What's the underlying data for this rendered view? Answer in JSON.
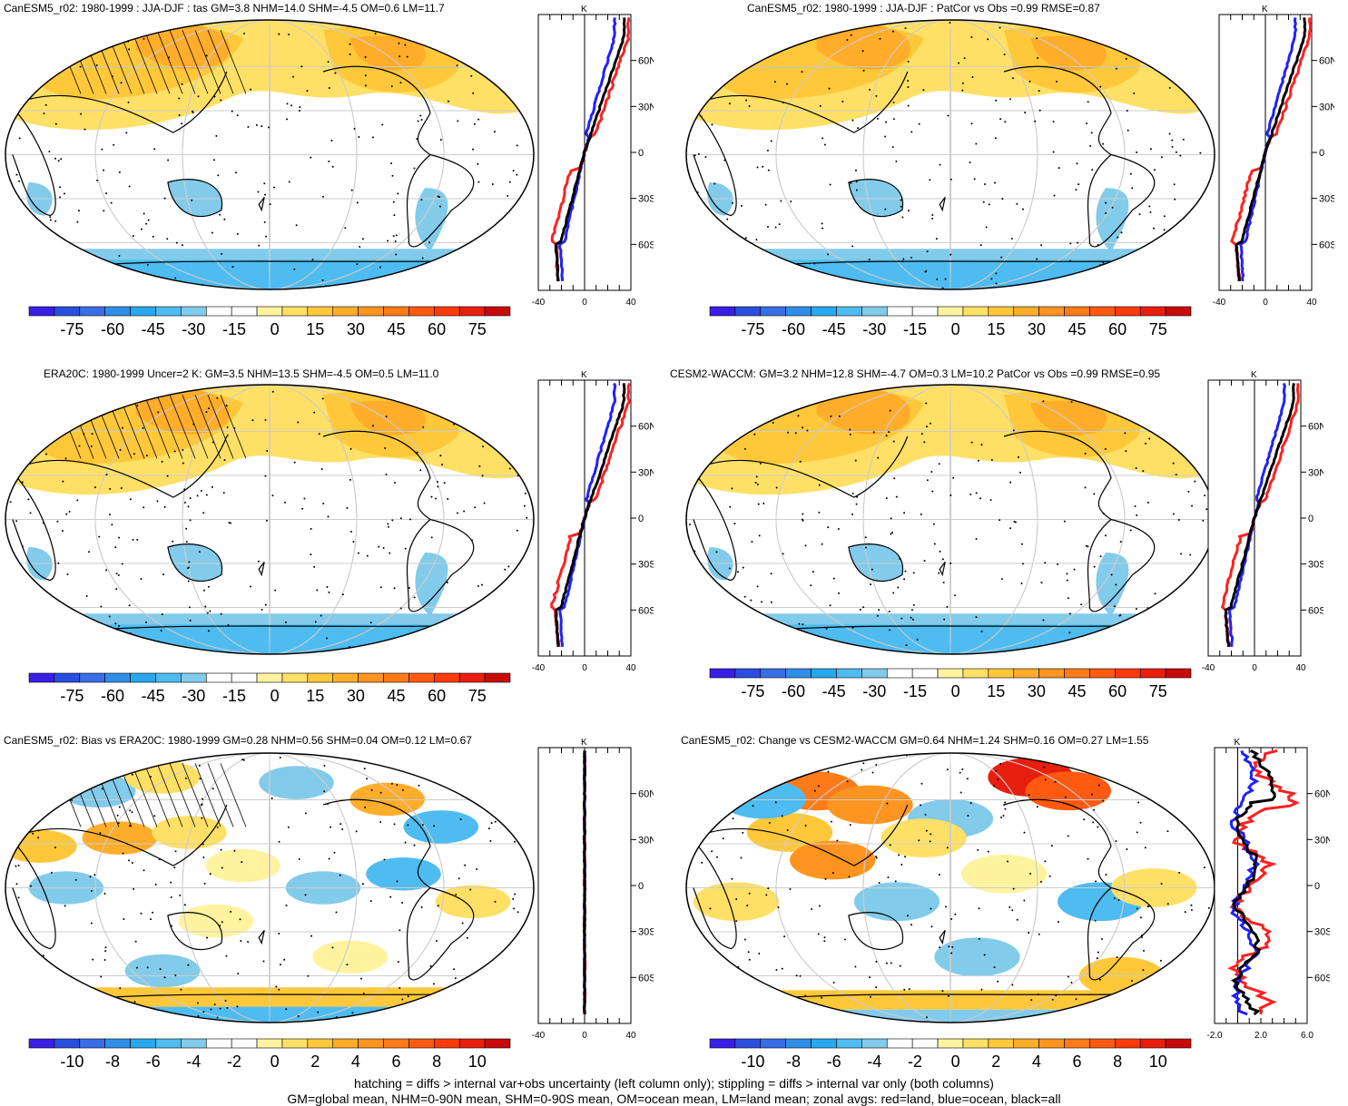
{
  "chart_data": [
    {
      "type": "heatmap",
      "title": "CanESM5_r02: 1980-1999 : JJA-DJF : tas GM=3.8 NHM=14.0 SHM=-4.5 OM=0.6 LM=11.7",
      "colorbar_ticks": [
        "-75",
        "-60",
        "-45",
        "-30",
        "-15",
        "0",
        "15",
        "30",
        "45",
        "60",
        "75"
      ],
      "zonal": {
        "unit_label": "K",
        "xlim": [
          -40,
          40
        ],
        "xticks": [
          "-40",
          "0",
          "40"
        ],
        "yticks": [
          "60N",
          "30N",
          "0",
          "30S",
          "60S"
        ]
      }
    },
    {
      "type": "heatmap",
      "title": "CanESM5_r02: 1980-1999 : JJA-DJF : PatCor vs Obs =0.99 RMSE=0.87",
      "colorbar_ticks": [
        "-75",
        "-60",
        "-45",
        "-30",
        "-15",
        "0",
        "15",
        "30",
        "45",
        "60",
        "75"
      ],
      "zonal": {
        "unit_label": "K",
        "xlim": [
          -40,
          40
        ],
        "xticks": [
          "-40",
          "0",
          "40"
        ],
        "yticks": [
          "60N",
          "30N",
          "0",
          "30S",
          "60S"
        ]
      }
    },
    {
      "type": "heatmap",
      "title": "ERA20C: 1980-1999 Uncer=2 K: GM=3.5 NHM=13.5 SHM=-4.5 OM=0.5 LM=11.0",
      "colorbar_ticks": [
        "-75",
        "-60",
        "-45",
        "-30",
        "-15",
        "0",
        "15",
        "30",
        "45",
        "60",
        "75"
      ],
      "zonal": {
        "unit_label": "K",
        "xlim": [
          -40,
          40
        ],
        "xticks": [
          "-40",
          "0",
          "40"
        ],
        "yticks": [
          "60N",
          "30N",
          "0",
          "30S",
          "60S"
        ]
      }
    },
    {
      "type": "heatmap",
      "title": "CESM2-WACCM: GM=3.2 NHM=12.8 SHM=-4.7 OM=0.3 LM=10.2 PatCor vs Obs =0.99 RMSE=0.95",
      "colorbar_ticks": [
        "-75",
        "-60",
        "-45",
        "-30",
        "-15",
        "0",
        "15",
        "30",
        "45",
        "60",
        "75"
      ],
      "zonal": {
        "unit_label": "K",
        "xlim": [
          -40,
          40
        ],
        "xticks": [
          "-40",
          "0",
          "40"
        ],
        "yticks": [
          "60N",
          "30N",
          "0",
          "30S",
          "60S"
        ]
      }
    },
    {
      "type": "heatmap",
      "title": "CanESM5_r02: Bias vs ERA20C: 1980-1999 GM=0.28 NHM=0.56 SHM=0.04 OM=0.12 LM=0.67",
      "colorbar_ticks": [
        "-10",
        "-8",
        "-6",
        "-4",
        "-2",
        "0",
        "2",
        "4",
        "6",
        "8",
        "10"
      ],
      "zonal": {
        "unit_label": "K",
        "xlim": [
          -40,
          40
        ],
        "xticks": [
          "-40",
          "0",
          "40"
        ],
        "yticks": [
          "60N",
          "30N",
          "0",
          "30S",
          "60S"
        ]
      }
    },
    {
      "type": "heatmap",
      "title": "CanESM5_r02: Change vs CESM2-WACCM GM=0.64 NHM=1.24 SHM=0.16 OM=0.27 LM=1.55",
      "colorbar_ticks": [
        "-10",
        "-8",
        "-6",
        "-4",
        "-2",
        "0",
        "2",
        "4",
        "6",
        "8",
        "10"
      ],
      "zonal": {
        "unit_label": "K",
        "xlim": [
          -2,
          6
        ],
        "xticks": [
          "-2.0",
          "2.0",
          "6.0"
        ],
        "yticks": [
          "60N",
          "30N",
          "0",
          "30S",
          "60S"
        ]
      }
    }
  ],
  "colors": {
    "scale": [
      "#3a1ee6",
      "#2a4ee0",
      "#3a6ee6",
      "#2f8ee8",
      "#28a8ee",
      "#4ebcf0",
      "#82cbeb",
      "#ffffff",
      "#ffffff",
      "#fff3a0",
      "#ffe066",
      "#ffc83a",
      "#ffad2a",
      "#ff9420",
      "#ff7a18",
      "#ff5a10",
      "#ff3a0a",
      "#e81e0e",
      "#c80a0a"
    ],
    "land_line": "#ff2020",
    "ocean_line": "#2020ff",
    "all_line": "#000000"
  },
  "footer": {
    "line1": "hatching = diffs > internal var+obs uncertainty (left column only); stippling = diffs > internal var only (both columns)",
    "line2": "GM=global mean, NHM=0-90N mean, SHM=0-90S mean, OM=ocean mean, LM=land mean; zonal avgs: red=land, blue=ocean, black=all"
  }
}
